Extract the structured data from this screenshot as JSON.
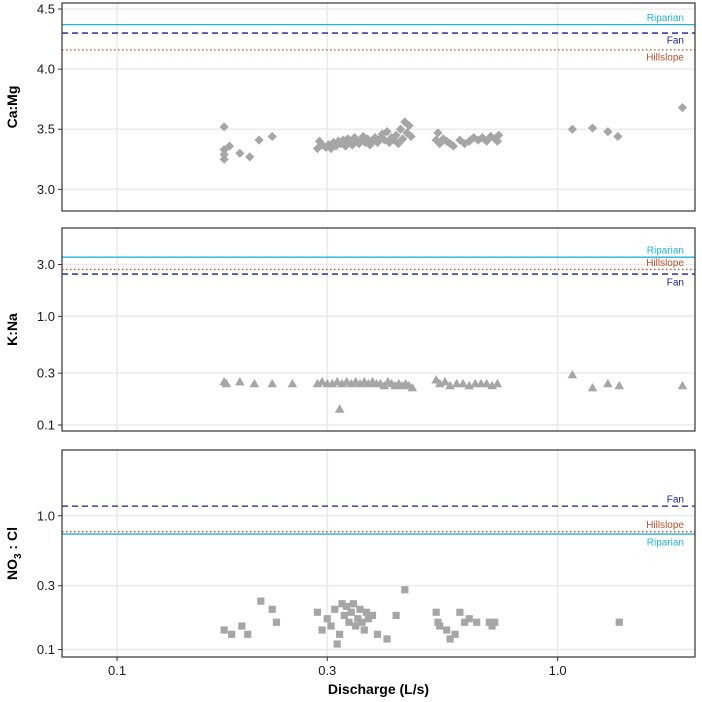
{
  "chart_data": {
    "type": "scatter",
    "xlabel": "Discharge (L/s)",
    "x_scale": "log",
    "xlim": [
      0.075,
      2.05
    ],
    "x_ticks": [
      {
        "value": 0.1,
        "label": "0.1"
      },
      {
        "value": 0.3,
        "label": "0.3"
      },
      {
        "value": 1.0,
        "label": "1.0"
      }
    ],
    "panels": [
      {
        "id": "ca-mg",
        "ylabel": "Ca:Mg",
        "y_scale": "linear",
        "ylim": [
          2.82,
          4.55
        ],
        "y_ticks": [
          {
            "value": 3.0,
            "label": "3.0"
          },
          {
            "value": 3.5,
            "label": "3.5"
          },
          {
            "value": 4.0,
            "label": "4.0"
          },
          {
            "value": 4.5,
            "label": "4.5"
          }
        ],
        "marker": "diamond",
        "reference_lines": [
          {
            "name": "Riparian",
            "value": 4.37,
            "color": "#1fb3e0",
            "dash": "solid",
            "label_offset": -7
          },
          {
            "name": "Fan",
            "value": 4.3,
            "color": "#1a1a9c",
            "dash": "dashed",
            "label_offset": 7
          },
          {
            "name": "Hillslope",
            "value": 4.16,
            "color": "#c0502a",
            "dash": "dotted",
            "label_offset": 7
          }
        ],
        "points": [
          [
            0.175,
            3.52
          ],
          [
            0.175,
            3.33
          ],
          [
            0.175,
            3.29
          ],
          [
            0.175,
            3.25
          ],
          [
            0.18,
            3.36
          ],
          [
            0.19,
            3.3
          ],
          [
            0.2,
            3.27
          ],
          [
            0.21,
            3.41
          ],
          [
            0.225,
            3.44
          ],
          [
            0.285,
            3.34
          ],
          [
            0.288,
            3.4
          ],
          [
            0.292,
            3.37
          ],
          [
            0.298,
            3.35
          ],
          [
            0.302,
            3.37
          ],
          [
            0.306,
            3.34
          ],
          [
            0.31,
            3.39
          ],
          [
            0.314,
            3.36
          ],
          [
            0.318,
            3.4
          ],
          [
            0.322,
            3.38
          ],
          [
            0.326,
            3.41
          ],
          [
            0.33,
            3.36
          ],
          [
            0.334,
            3.42
          ],
          [
            0.338,
            3.39
          ],
          [
            0.342,
            3.37
          ],
          [
            0.346,
            3.43
          ],
          [
            0.35,
            3.4
          ],
          [
            0.354,
            3.38
          ],
          [
            0.358,
            3.41
          ],
          [
            0.362,
            3.44
          ],
          [
            0.366,
            3.39
          ],
          [
            0.37,
            3.42
          ],
          [
            0.375,
            3.37
          ],
          [
            0.38,
            3.4
          ],
          [
            0.385,
            3.43
          ],
          [
            0.39,
            3.39
          ],
          [
            0.395,
            3.42
          ],
          [
            0.4,
            3.46
          ],
          [
            0.405,
            3.41
          ],
          [
            0.41,
            3.48
          ],
          [
            0.415,
            3.39
          ],
          [
            0.42,
            3.43
          ],
          [
            0.425,
            3.41
          ],
          [
            0.43,
            3.45
          ],
          [
            0.435,
            3.38
          ],
          [
            0.44,
            3.5
          ],
          [
            0.445,
            3.42
          ],
          [
            0.45,
            3.56
          ],
          [
            0.455,
            3.47
          ],
          [
            0.46,
            3.53
          ],
          [
            0.465,
            3.44
          ],
          [
            0.53,
            3.41
          ],
          [
            0.535,
            3.47
          ],
          [
            0.54,
            3.38
          ],
          [
            0.55,
            3.42
          ],
          [
            0.56,
            3.4
          ],
          [
            0.57,
            3.38
          ],
          [
            0.58,
            3.36
          ],
          [
            0.6,
            3.41
          ],
          [
            0.615,
            3.38
          ],
          [
            0.63,
            3.4
          ],
          [
            0.645,
            3.43
          ],
          [
            0.66,
            3.41
          ],
          [
            0.675,
            3.43
          ],
          [
            0.69,
            3.4
          ],
          [
            0.705,
            3.44
          ],
          [
            0.72,
            3.42
          ],
          [
            0.73,
            3.4
          ],
          [
            0.735,
            3.45
          ],
          [
            1.08,
            3.5
          ],
          [
            1.2,
            3.51
          ],
          [
            1.3,
            3.48
          ],
          [
            1.37,
            3.44
          ],
          [
            1.92,
            3.68
          ]
        ]
      },
      {
        "id": "k-na",
        "ylabel": "K:Na",
        "y_scale": "log",
        "ylim": [
          0.088,
          6.5
        ],
        "y_ticks": [
          {
            "value": 0.1,
            "label": "0.1"
          },
          {
            "value": 0.3,
            "label": "0.3"
          },
          {
            "value": 1.0,
            "label": "1.0"
          },
          {
            "value": 3.0,
            "label": "3.0"
          }
        ],
        "marker": "triangle",
        "reference_lines": [
          {
            "name": "Riparian",
            "value": 3.5,
            "color": "#1fb3e0",
            "dash": "solid",
            "label_offset": -7
          },
          {
            "name": "Hillslope",
            "value": 2.7,
            "color": "#c0502a",
            "dash": "dotted",
            "label_offset": -7
          },
          {
            "name": "Fan",
            "value": 2.45,
            "color": "#1a1a9c",
            "dash": "dashed",
            "label_offset": 8
          }
        ],
        "points": [
          [
            0.175,
            0.25
          ],
          [
            0.177,
            0.24
          ],
          [
            0.19,
            0.25
          ],
          [
            0.205,
            0.24
          ],
          [
            0.225,
            0.24
          ],
          [
            0.25,
            0.24
          ],
          [
            0.285,
            0.24
          ],
          [
            0.292,
            0.25
          ],
          [
            0.3,
            0.24
          ],
          [
            0.308,
            0.24
          ],
          [
            0.316,
            0.25
          ],
          [
            0.32,
            0.14
          ],
          [
            0.324,
            0.24
          ],
          [
            0.332,
            0.25
          ],
          [
            0.34,
            0.24
          ],
          [
            0.348,
            0.25
          ],
          [
            0.356,
            0.24
          ],
          [
            0.364,
            0.25
          ],
          [
            0.372,
            0.24
          ],
          [
            0.38,
            0.25
          ],
          [
            0.388,
            0.24
          ],
          [
            0.396,
            0.24
          ],
          [
            0.404,
            0.23
          ],
          [
            0.412,
            0.25
          ],
          [
            0.42,
            0.24
          ],
          [
            0.428,
            0.23
          ],
          [
            0.436,
            0.24
          ],
          [
            0.444,
            0.23
          ],
          [
            0.452,
            0.24
          ],
          [
            0.46,
            0.23
          ],
          [
            0.468,
            0.22
          ],
          [
            0.53,
            0.26
          ],
          [
            0.54,
            0.24
          ],
          [
            0.555,
            0.25
          ],
          [
            0.57,
            0.23
          ],
          [
            0.59,
            0.24
          ],
          [
            0.61,
            0.24
          ],
          [
            0.63,
            0.23
          ],
          [
            0.65,
            0.24
          ],
          [
            0.67,
            0.24
          ],
          [
            0.69,
            0.24
          ],
          [
            0.71,
            0.23
          ],
          [
            0.73,
            0.24
          ],
          [
            1.08,
            0.29
          ],
          [
            1.2,
            0.22
          ],
          [
            1.3,
            0.24
          ],
          [
            1.38,
            0.23
          ],
          [
            1.92,
            0.23
          ]
        ]
      },
      {
        "id": "no3-cl",
        "ylabel": "NO3 : Cl",
        "ylabel_parts": {
          "base": "NO",
          "subscript": "3",
          "rest": " : Cl"
        },
        "y_scale": "log",
        "ylim": [
          0.088,
          3.1
        ],
        "y_ticks": [
          {
            "value": 0.1,
            "label": "0.1"
          },
          {
            "value": 0.3,
            "label": "0.3"
          },
          {
            "value": 1.0,
            "label": "1.0"
          }
        ],
        "marker": "square",
        "reference_lines": [
          {
            "name": "Fan",
            "value": 1.18,
            "color": "#1a1a9c",
            "dash": "dashed",
            "label_offset": -7
          },
          {
            "name": "Hillslope",
            "value": 0.76,
            "color": "#c0502a",
            "dash": "dotted",
            "label_offset": -7
          },
          {
            "name": "Riparian",
            "value": 0.73,
            "color": "#1fb3e0",
            "dash": "solid",
            "label_offset": 8
          }
        ],
        "points": [
          [
            0.175,
            0.14
          ],
          [
            0.182,
            0.13
          ],
          [
            0.192,
            0.15
          ],
          [
            0.198,
            0.13
          ],
          [
            0.212,
            0.23
          ],
          [
            0.225,
            0.2
          ],
          [
            0.23,
            0.16
          ],
          [
            0.285,
            0.19
          ],
          [
            0.292,
            0.14
          ],
          [
            0.3,
            0.17
          ],
          [
            0.306,
            0.15
          ],
          [
            0.312,
            0.2
          ],
          [
            0.316,
            0.11
          ],
          [
            0.32,
            0.13
          ],
          [
            0.324,
            0.22
          ],
          [
            0.328,
            0.18
          ],
          [
            0.332,
            0.21
          ],
          [
            0.336,
            0.16
          ],
          [
            0.34,
            0.19
          ],
          [
            0.344,
            0.22
          ],
          [
            0.348,
            0.15
          ],
          [
            0.352,
            0.17
          ],
          [
            0.356,
            0.2
          ],
          [
            0.36,
            0.16
          ],
          [
            0.364,
            0.14
          ],
          [
            0.368,
            0.19
          ],
          [
            0.372,
            0.17
          ],
          [
            0.38,
            0.18
          ],
          [
            0.39,
            0.13
          ],
          [
            0.41,
            0.12
          ],
          [
            0.43,
            0.18
          ],
          [
            0.45,
            0.28
          ],
          [
            0.53,
            0.19
          ],
          [
            0.535,
            0.16
          ],
          [
            0.54,
            0.15
          ],
          [
            0.56,
            0.14
          ],
          [
            0.57,
            0.12
          ],
          [
            0.585,
            0.13
          ],
          [
            0.6,
            0.19
          ],
          [
            0.615,
            0.16
          ],
          [
            0.63,
            0.17
          ],
          [
            0.655,
            0.16
          ],
          [
            0.7,
            0.16
          ],
          [
            0.71,
            0.15
          ],
          [
            0.72,
            0.16
          ],
          [
            1.38,
            0.16
          ]
        ]
      }
    ]
  }
}
